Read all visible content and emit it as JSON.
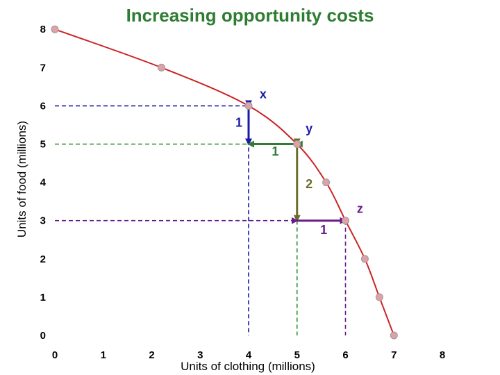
{
  "chart_data": {
    "type": "line",
    "title": "Increasing opportunity costs",
    "xlabel": "Units of clothing (millions)",
    "ylabel": "Units of food (millions)",
    "xlim": [
      0,
      8
    ],
    "ylim": [
      0,
      8
    ],
    "x_ticks": [
      "0",
      "1",
      "2",
      "3",
      "4",
      "5",
      "6",
      "7",
      "8"
    ],
    "y_ticks": [
      "0",
      "1",
      "2",
      "3",
      "4",
      "5",
      "6",
      "7",
      "8"
    ],
    "grid": false,
    "curve_color": "#cc2222",
    "marker_color": "#e0a0a8",
    "series": [
      {
        "x": [
          0,
          2.2,
          4,
          5,
          5.6,
          6,
          6.4,
          6.7,
          7
        ],
        "y": [
          8,
          7,
          6,
          5,
          4,
          3,
          2,
          1,
          0
        ]
      }
    ],
    "guides": [
      {
        "x": 4,
        "y": 6,
        "color": "#1a1aaa"
      },
      {
        "x": 5,
        "y": 5,
        "color": "#2e8b2e"
      },
      {
        "x": 6,
        "y": 3,
        "color": "#6a1b8a"
      }
    ],
    "arrows": [
      {
        "from": [
          4,
          6
        ],
        "to": [
          4,
          5
        ],
        "color": "#1a1aaa"
      },
      {
        "from": [
          5,
          5
        ],
        "to": [
          4,
          5
        ],
        "color": "#2e7d32"
      },
      {
        "from": [
          5,
          5
        ],
        "to": [
          5,
          3
        ],
        "color": "#6b6b2a"
      },
      {
        "from": [
          5,
          3
        ],
        "to": [
          6,
          3
        ],
        "color": "#6a1b8a"
      }
    ],
    "annotations": [
      {
        "text": "x",
        "at": [
          4.3,
          6.2
        ],
        "color": "#1a1aaa"
      },
      {
        "text": "y",
        "at": [
          5.25,
          5.3
        ],
        "color": "#1a1aaa"
      },
      {
        "text": "z",
        "at": [
          6.3,
          3.2
        ],
        "color": "#6a1b8a"
      },
      {
        "text": "1",
        "at": [
          3.8,
          5.45
        ],
        "color": "#1a1aaa"
      },
      {
        "text": "1",
        "at": [
          4.55,
          4.7
        ],
        "color": "#2e7d32"
      },
      {
        "text": "2",
        "at": [
          5.25,
          3.85
        ],
        "color": "#6b6b2a"
      },
      {
        "text": "1",
        "at": [
          5.55,
          2.65
        ],
        "color": "#6a1b8a"
      }
    ]
  }
}
